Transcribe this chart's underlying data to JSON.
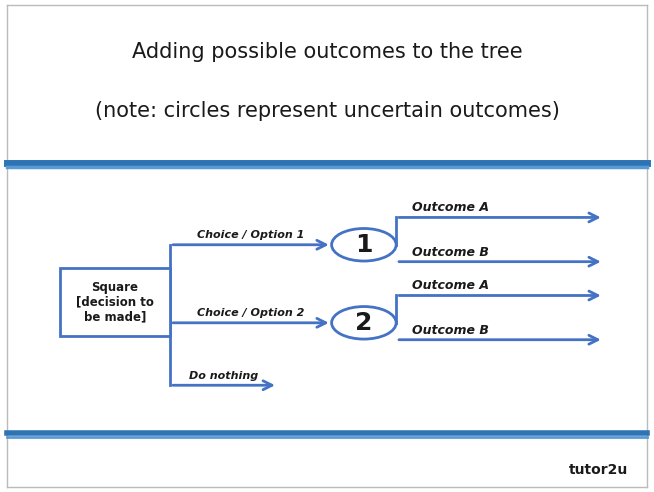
{
  "title_line1": "Adding possible outcomes to the tree",
  "title_line2": "(note: circles represent uncertain outcomes)",
  "title_fontsize": 15,
  "bg_color": "#ffffff",
  "border_color": "#bbbbbb",
  "blue_dark": "#2e74b5",
  "blue_light": "#5b9bd5",
  "arrow_color": "#4472c4",
  "text_color": "#1a1a1a",
  "square_label": "Square\n[decision to\nbe made]",
  "choice1_label": "Choice / Option 1",
  "choice2_label": "Choice / Option 2",
  "do_nothing_label": "Do nothing",
  "circle1_label": "1",
  "circle2_label": "2",
  "outcome_A1": "Outcome A",
  "outcome_B1": "Outcome B",
  "outcome_A2": "Outcome A",
  "outcome_B2": "Outcome B",
  "footer_text": "tutor2u"
}
